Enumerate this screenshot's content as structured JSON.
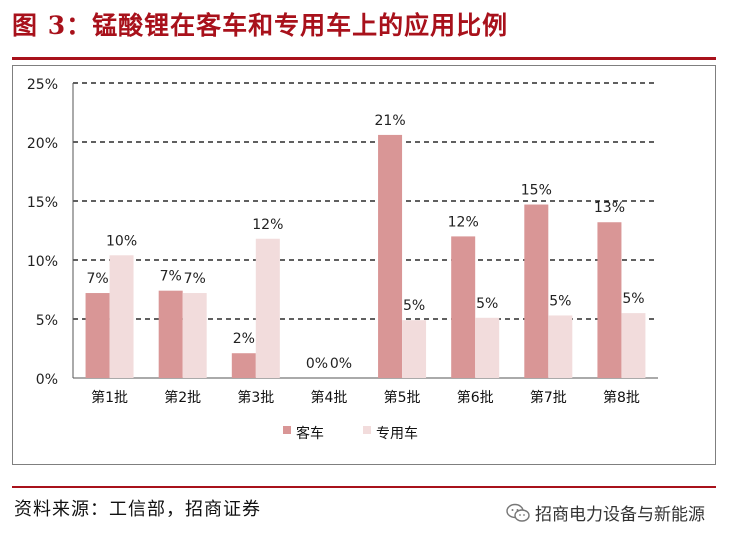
{
  "header": {
    "title": "图 3：锰酸锂在客车和专用车上的应用比例"
  },
  "footer": {
    "source": "资料来源：工信部，招商证券",
    "brand": "招商电力设备与新能源",
    "brand_icon": "wechat-icon"
  },
  "chart_data": {
    "type": "bar",
    "categories": [
      "第1批",
      "第2批",
      "第3批",
      "第4批",
      "第5批",
      "第6批",
      "第7批",
      "第8批"
    ],
    "series": [
      {
        "name": "客车",
        "color": "#d99696",
        "values": [
          7.2,
          7.4,
          2.1,
          0,
          20.6,
          12.0,
          14.7,
          13.2
        ],
        "labels": [
          "7%",
          "7%",
          "2%",
          "0%",
          "21%",
          "12%",
          "15%",
          "13%"
        ]
      },
      {
        "name": "专用车",
        "color": "#f2dcdc",
        "values": [
          10.4,
          7.2,
          11.8,
          0,
          4.9,
          5.1,
          5.3,
          5.5
        ],
        "labels": [
          "10%",
          "7%",
          "12%",
          "0%",
          "5%",
          "5%",
          "5%",
          "5%"
        ]
      }
    ],
    "ylim": [
      0,
      25
    ],
    "yticks": [
      "0%",
      "5%",
      "10%",
      "15%",
      "20%",
      "25%"
    ],
    "grid": true,
    "legend": "bottom"
  }
}
